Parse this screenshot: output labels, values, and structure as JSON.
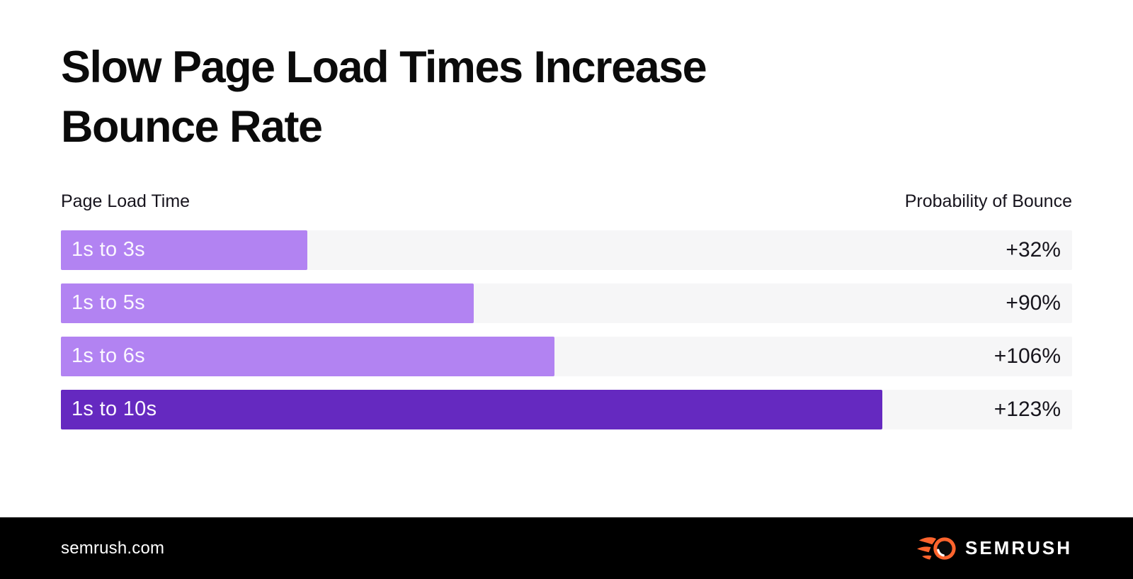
{
  "page": {
    "background": "#ffffff"
  },
  "title": "Slow Page Load Times Increase Bounce Rate",
  "chart": {
    "left_header": "Page Load Time",
    "right_header": "Probability of Bounce"
  },
  "chart_data": {
    "type": "bar",
    "orientation": "horizontal",
    "title": "Slow Page Load Times Increase Bounce Rate",
    "xlabel": "Probability of Bounce",
    "ylabel": "Page Load Time",
    "categories": [
      "1s to 3s",
      "1s to 5s",
      "1s to 6s",
      "1s to 10s"
    ],
    "values": [
      32,
      90,
      106,
      123
    ],
    "value_labels": [
      "+32%",
      "+90%",
      "+106%",
      "+123%"
    ],
    "bar_width_pct": [
      24.4,
      40.8,
      48.8,
      81.2
    ],
    "bar_colors": [
      "#b283f2",
      "#b283f2",
      "#b283f2",
      "#6529c0"
    ],
    "track_color": "#f6f6f7",
    "label_color": "#fbf7ff",
    "value_color": "#17151d",
    "grid": false,
    "legend": false
  },
  "footer": {
    "website": "semrush.com",
    "brand": "SEMRUSH",
    "logo_color": "#ff642d",
    "logo_ball_color": "#0a0a0a",
    "background": "#000000"
  }
}
